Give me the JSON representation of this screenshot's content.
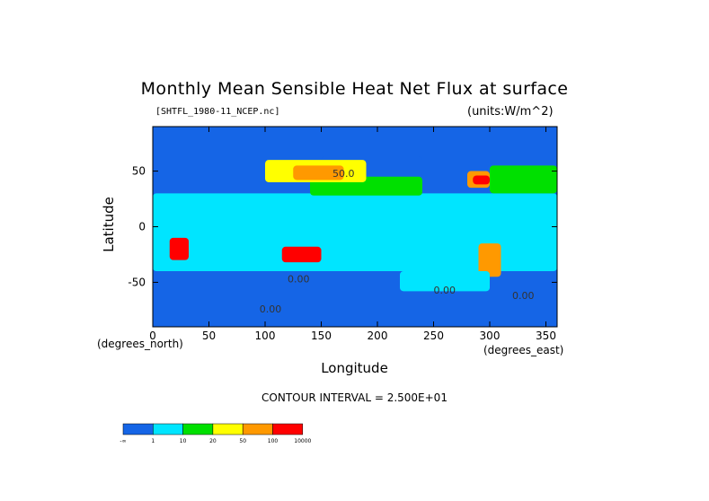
{
  "title": "Monthly Mean Sensible Heat Net Flux at surface",
  "file_label": "[SHTFL_1980-11_NCEP.nc]",
  "units_label": "(units:W/m^2)",
  "contour_interval": "CONTOUR INTERVAL = 2.500E+01",
  "chart_data": {
    "type": "heatmap",
    "title": "Monthly Mean Sensible Heat Net Flux at surface",
    "xlabel": "Longitude",
    "ylabel": "Latitude",
    "x_unit_label": "(degrees_north)",
    "y_unit_label": "(degrees_east)",
    "xlim": [
      0,
      360
    ],
    "ylim": [
      -90,
      90
    ],
    "x_ticks": [
      "0",
      "50",
      "100",
      "150",
      "200",
      "250",
      "300",
      "350"
    ],
    "x_tick_values": [
      0,
      50,
      100,
      150,
      200,
      250,
      300,
      350
    ],
    "y_ticks": [
      "-50",
      "0",
      "50"
    ],
    "y_tick_values": [
      -50,
      0,
      50
    ],
    "contour_labels": [
      {
        "text": "50.0",
        "lon": 160,
        "lat": 45
      },
      {
        "text": "0.00",
        "lon": 120,
        "lat": -50
      },
      {
        "text": "0.00",
        "lon": 250,
        "lat": -60
      },
      {
        "text": "0.00",
        "lon": 320,
        "lat": -65
      },
      {
        "text": "0.00",
        "lon": 95,
        "lat": -77
      }
    ],
    "colorbar": {
      "levels": [
        "-∞",
        "1",
        "10",
        "20",
        "50",
        "100",
        "10000"
      ],
      "colors": [
        "#1565e6",
        "#00e5ff",
        "#00e000",
        "#ffff00",
        "#ff9900",
        "#ff0000"
      ]
    },
    "regions": [
      {
        "name": "polar-north",
        "color": "#1565e6",
        "lon": [
          0,
          360
        ],
        "lat": [
          63,
          90
        ]
      },
      {
        "name": "polar-south",
        "color": "#1565e6",
        "lon": [
          0,
          360
        ],
        "lat": [
          -90,
          -40
        ]
      },
      {
        "name": "pacific-north",
        "color": "#1565e6",
        "lon": [
          150,
          240
        ],
        "lat": [
          45,
          63
        ]
      },
      {
        "name": "tropics-cyan",
        "color": "#00e5ff",
        "lon": [
          0,
          360
        ],
        "lat": [
          -40,
          30
        ]
      },
      {
        "name": "north-mid-green",
        "color": "#00e000",
        "lon": [
          140,
          240
        ],
        "lat": [
          28,
          45
        ]
      },
      {
        "name": "atlantic-green",
        "color": "#00e000",
        "lon": [
          300,
          360
        ],
        "lat": [
          30,
          55
        ]
      },
      {
        "name": "asia-yellow",
        "color": "#ffff00",
        "lon": [
          100,
          190
        ],
        "lat": [
          40,
          60
        ]
      },
      {
        "name": "asia-orange",
        "color": "#ff9900",
        "lon": [
          125,
          170
        ],
        "lat": [
          42,
          55
        ]
      },
      {
        "name": "north-america-orange",
        "color": "#ff9900",
        "lon": [
          280,
          300
        ],
        "lat": [
          35,
          50
        ]
      },
      {
        "name": "north-america-red",
        "color": "#ff0000",
        "lon": [
          285,
          300
        ],
        "lat": [
          38,
          46
        ]
      },
      {
        "name": "africa-red",
        "color": "#ff0000",
        "lon": [
          15,
          32
        ],
        "lat": [
          -30,
          -10
        ]
      },
      {
        "name": "australia-red",
        "color": "#ff0000",
        "lon": [
          115,
          150
        ],
        "lat": [
          -32,
          -18
        ]
      },
      {
        "name": "south-america-orange",
        "color": "#ff9900",
        "lon": [
          290,
          310
        ],
        "lat": [
          -45,
          -15
        ]
      },
      {
        "name": "southern-ocean-cyan",
        "color": "#00e5ff",
        "lon": [
          220,
          300
        ],
        "lat": [
          -58,
          -40
        ]
      }
    ]
  }
}
